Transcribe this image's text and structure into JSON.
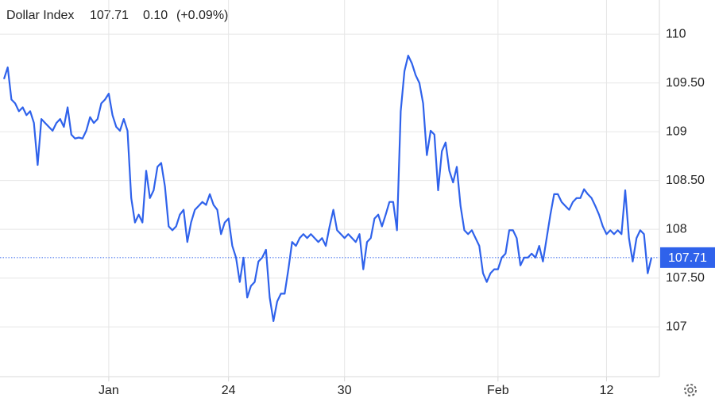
{
  "chart_data": {
    "type": "line",
    "title": "Dollar Index",
    "last_price": 107.71,
    "change": {
      "value": 0.1,
      "label": "0.10"
    },
    "change_pct_label": "(+0.09%)",
    "color": "#2f62eb",
    "up_color": "#2aa83a",
    "values": [
      109.54,
      109.66,
      109.33,
      109.29,
      109.21,
      109.25,
      109.17,
      109.21,
      109.09,
      108.66,
      109.13,
      109.09,
      109.05,
      109.01,
      109.09,
      109.13,
      109.05,
      109.25,
      108.97,
      108.93,
      108.94,
      108.93,
      109.01,
      109.15,
      109.09,
      109.13,
      109.29,
      109.33,
      109.39,
      109.17,
      109.05,
      109.01,
      109.13,
      109.01,
      108.32,
      108.07,
      108.15,
      108.07,
      108.6,
      108.32,
      108.4,
      108.64,
      108.68,
      108.44,
      108.03,
      107.99,
      108.03,
      108.15,
      108.2,
      107.87,
      108.07,
      108.2,
      108.24,
      108.28,
      108.25,
      108.36,
      108.25,
      108.2,
      107.95,
      108.07,
      108.11,
      107.83,
      107.71,
      107.46,
      107.71,
      107.3,
      107.42,
      107.46,
      107.67,
      107.71,
      107.79,
      107.3,
      107.06,
      107.26,
      107.34,
      107.34,
      107.59,
      107.87,
      107.83,
      107.91,
      107.95,
      107.91,
      107.95,
      107.91,
      107.87,
      107.91,
      107.83,
      108.03,
      108.2,
      107.99,
      107.95,
      107.91,
      107.95,
      107.91,
      107.87,
      107.95,
      107.59,
      107.87,
      107.91,
      108.11,
      108.15,
      108.03,
      108.15,
      108.28,
      108.28,
      107.99,
      109.21,
      109.62,
      109.78,
      109.7,
      109.58,
      109.5,
      109.29,
      108.76,
      109.01,
      108.97,
      108.4,
      108.8,
      108.89,
      108.6,
      108.48,
      108.64,
      108.24,
      107.99,
      107.95,
      107.99,
      107.91,
      107.83,
      107.55,
      107.46,
      107.55,
      107.59,
      107.59,
      107.71,
      107.75,
      107.99,
      107.99,
      107.91,
      107.63,
      107.71,
      107.71,
      107.75,
      107.71,
      107.83,
      107.67,
      107.91,
      108.15,
      108.36,
      108.36,
      108.28,
      108.24,
      108.2,
      108.28,
      108.32,
      108.32,
      108.41,
      108.36,
      108.32,
      108.24,
      108.15,
      108.03,
      107.95,
      107.99,
      107.95,
      107.99,
      107.95,
      108.4,
      107.91,
      107.67,
      107.91,
      107.99,
      107.95,
      107.55,
      107.71
    ],
    "xlim": [
      0,
      173
    ],
    "xticks": [
      {
        "value": 28,
        "label": "Jan"
      },
      {
        "value": 60,
        "label": "24"
      },
      {
        "value": 91,
        "label": "30"
      },
      {
        "value": 132,
        "label": "Feb"
      },
      {
        "value": 161,
        "label": "12"
      }
    ],
    "ylim": [
      106.49,
      110.35
    ],
    "yticks": [
      107,
      {
        "value": 107.5,
        "label": "107.50"
      },
      108,
      {
        "value": 108.5,
        "label": "108.50"
      },
      109,
      {
        "value": 109.5,
        "label": "109.50"
      },
      110
    ],
    "grid": true
  }
}
